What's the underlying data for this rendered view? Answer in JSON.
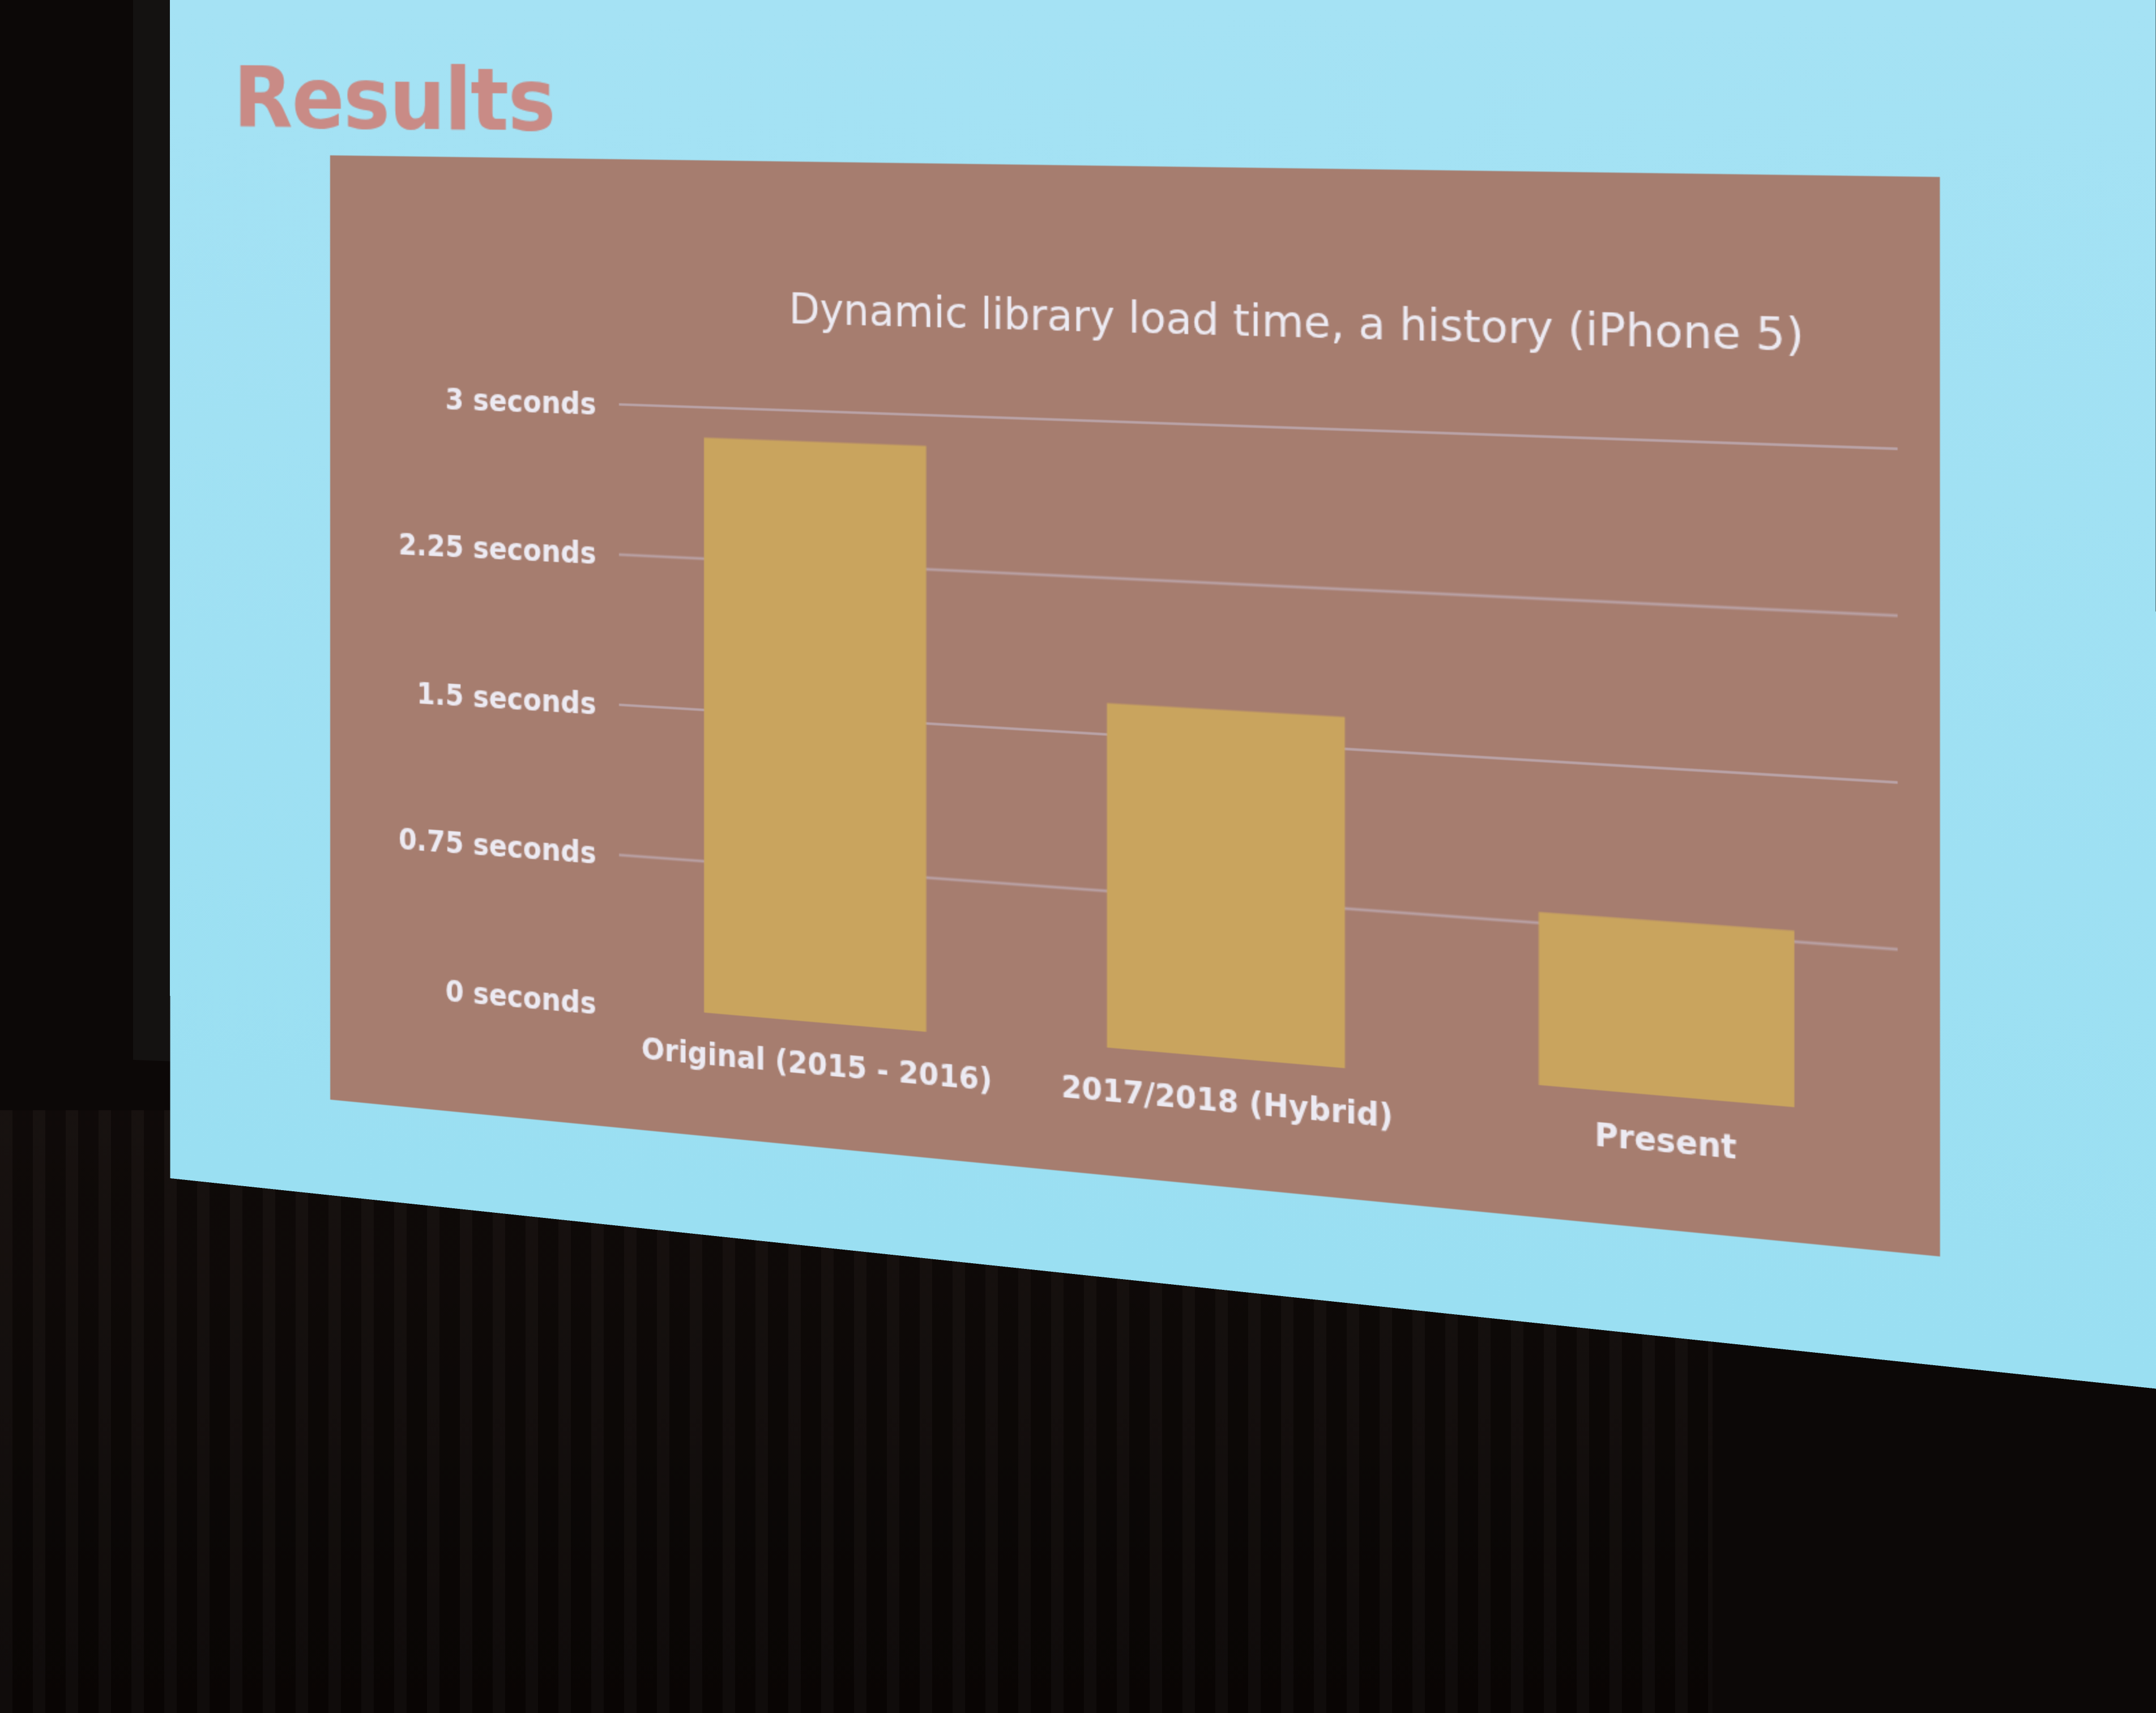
{
  "slide": {
    "title": "Results"
  },
  "colors": {
    "panel_background": "#a67d6f",
    "bar": "#c9a45e",
    "gridline": "#b9a2a6",
    "text": "#eceaf2",
    "slide_background": "#9ee0f3",
    "title_color": "#c98b86"
  },
  "chart_data": {
    "type": "bar",
    "title": "Dynamic library load time, a history (iPhone 5)",
    "xlabel": "",
    "ylabel": "",
    "categories": [
      "Original (2015 - 2016)",
      "2017/2018 (Hybrid)",
      "Present"
    ],
    "values": [
      2.85,
      1.65,
      0.8
    ],
    "ylim": [
      0,
      3
    ],
    "yticks": [
      0,
      0.75,
      1.5,
      2.25,
      3
    ],
    "ytick_labels": [
      "0 seconds",
      "0.75 seconds",
      "1.5 seconds",
      "2.25 seconds",
      "3 seconds"
    ],
    "grid": true,
    "legend": "none"
  }
}
